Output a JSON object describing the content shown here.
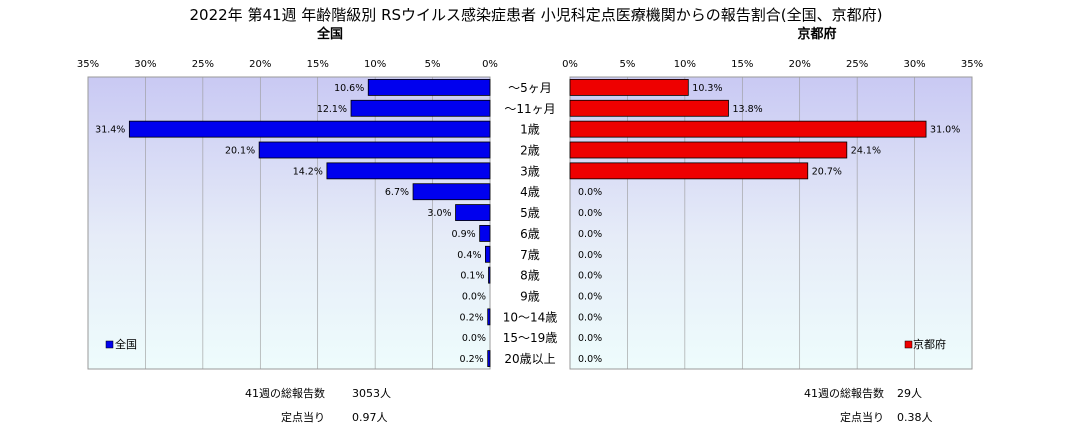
{
  "chart_data": {
    "type": "bar",
    "orientation": "horizontal",
    "title": "2022年 第41週 年齢階級別 RSウイルス感染症患者 小児科定点医療機関からの報告割合(全国、京都府)",
    "categories": [
      "～5ヶ月",
      "～11ヶ月",
      "1歳",
      "2歳",
      "3歳",
      "4歳",
      "5歳",
      "6歳",
      "7歳",
      "8歳",
      "9歳",
      "10～14歳",
      "15～19歳",
      "20歳以上"
    ],
    "xlim": [
      0,
      35
    ],
    "x_ticks": [
      "35%",
      "30%",
      "25%",
      "20%",
      "15%",
      "10%",
      "5%",
      "0%"
    ],
    "x_ticks_right": [
      "0%",
      "5%",
      "10%",
      "15%",
      "20%",
      "25%",
      "30%",
      "35%"
    ],
    "grid": true,
    "panels": [
      {
        "name": "全国",
        "legend": "全国",
        "legend_position": "bottom-left",
        "color": "#0000ee",
        "values": [
          10.6,
          12.1,
          31.4,
          20.1,
          14.2,
          6.7,
          3.0,
          0.9,
          0.4,
          0.1,
          0.0,
          0.2,
          0.0,
          0.2
        ],
        "labels": [
          "10.6%",
          "12.1%",
          "31.4%",
          "20.1%",
          "14.2%",
          "6.7%",
          "3.0%",
          "0.9%",
          "0.4%",
          "0.1%",
          "0.0%",
          "0.2%",
          "0.0%",
          "0.2%"
        ],
        "footer": {
          "total_label": "41週の総報告数",
          "total_value": "3053人",
          "per_label": "定点当り",
          "per_value": "0.97人"
        }
      },
      {
        "name": "京都府",
        "legend": "京都府",
        "legend_position": "bottom-right",
        "color": "#ee0000",
        "values": [
          10.3,
          13.8,
          31.0,
          24.1,
          20.7,
          0.0,
          0.0,
          0.0,
          0.0,
          0.0,
          0.0,
          0.0,
          0.0,
          0.0
        ],
        "labels": [
          "10.3%",
          "13.8%",
          "31.0%",
          "24.1%",
          "20.7%",
          "0.0%",
          "0.0%",
          "0.0%",
          "0.0%",
          "0.0%",
          "0.0%",
          "0.0%",
          "0.0%",
          "0.0%"
        ],
        "footer": {
          "total_label": "41週の総報告数",
          "total_value": "29人",
          "per_label": "定点当り",
          "per_value": "0.38人"
        }
      }
    ]
  }
}
